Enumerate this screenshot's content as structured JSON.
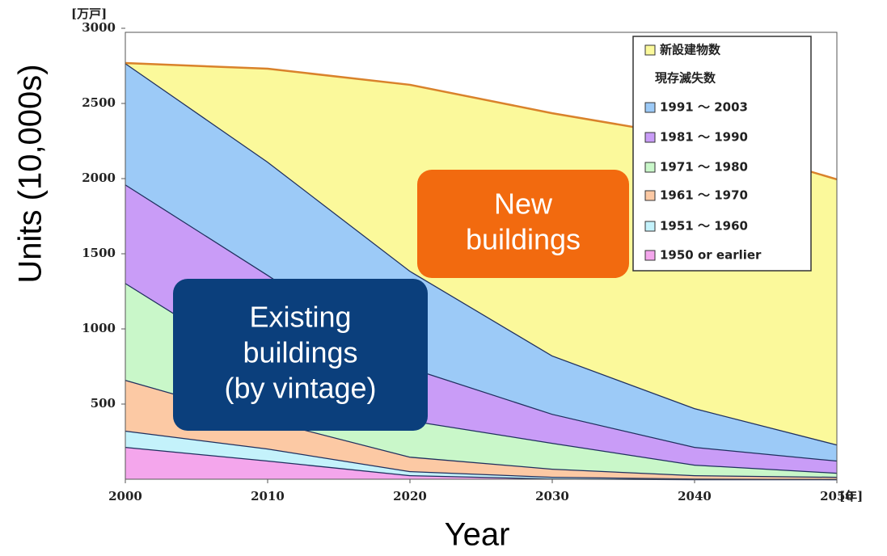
{
  "chart_data": {
    "type": "stacked_area",
    "y_unit": "[万戸]",
    "x_unit": "[年]",
    "xlabel": "Year",
    "ylabel": "Units (10,000s)",
    "x": [
      2000,
      2010,
      2020,
      2030,
      2040,
      2050
    ],
    "xlim": [
      2000,
      2050
    ],
    "xticks": [
      2000,
      2010,
      2020,
      2030,
      2040,
      2050
    ],
    "ylim": [
      0,
      3000
    ],
    "yticks": [
      500,
      1000,
      1500,
      2000,
      2500,
      3000
    ],
    "legend_position": "upper right",
    "legend_subtitle": "現存滅失数",
    "series": [
      {
        "name": "1950 or earlier",
        "color": "#f4a6ec",
        "values": [
          215,
          124,
          27,
          5,
          0,
          0
        ]
      },
      {
        "name": "1951 ～ 1960",
        "color": "#c4f2fb",
        "values": [
          108,
          80,
          27,
          11,
          5,
          1
        ]
      },
      {
        "name": "1961 ～ 1970",
        "color": "#fcc9a4",
        "values": [
          338,
          188,
          96,
          54,
          22,
          15
        ]
      },
      {
        "name": "1971 ～ 1980",
        "color": "#c9f7c9",
        "values": [
          645,
          323,
          242,
          172,
          70,
          27
        ]
      },
      {
        "name": "1981 ～ 1990",
        "color": "#c99cf7",
        "values": [
          656,
          645,
          350,
          193,
          118,
          81
        ]
      },
      {
        "name": "1991 ～ 2003",
        "color": "#9ccaf7",
        "values": [
          807,
          753,
          645,
          388,
          258,
          107
        ]
      },
      {
        "name": "新設建物数",
        "color": "#fbf99b",
        "values": [
          0,
          618,
          1237,
          1612,
          1801,
          1764
        ]
      }
    ],
    "annotations": [
      {
        "lines": [
          "New",
          "buildings"
        ],
        "color": "#f26a0f"
      },
      {
        "lines": [
          "Existing",
          "buildings",
          "(by vintage)"
        ],
        "color": "#0b3f7c"
      }
    ]
  }
}
